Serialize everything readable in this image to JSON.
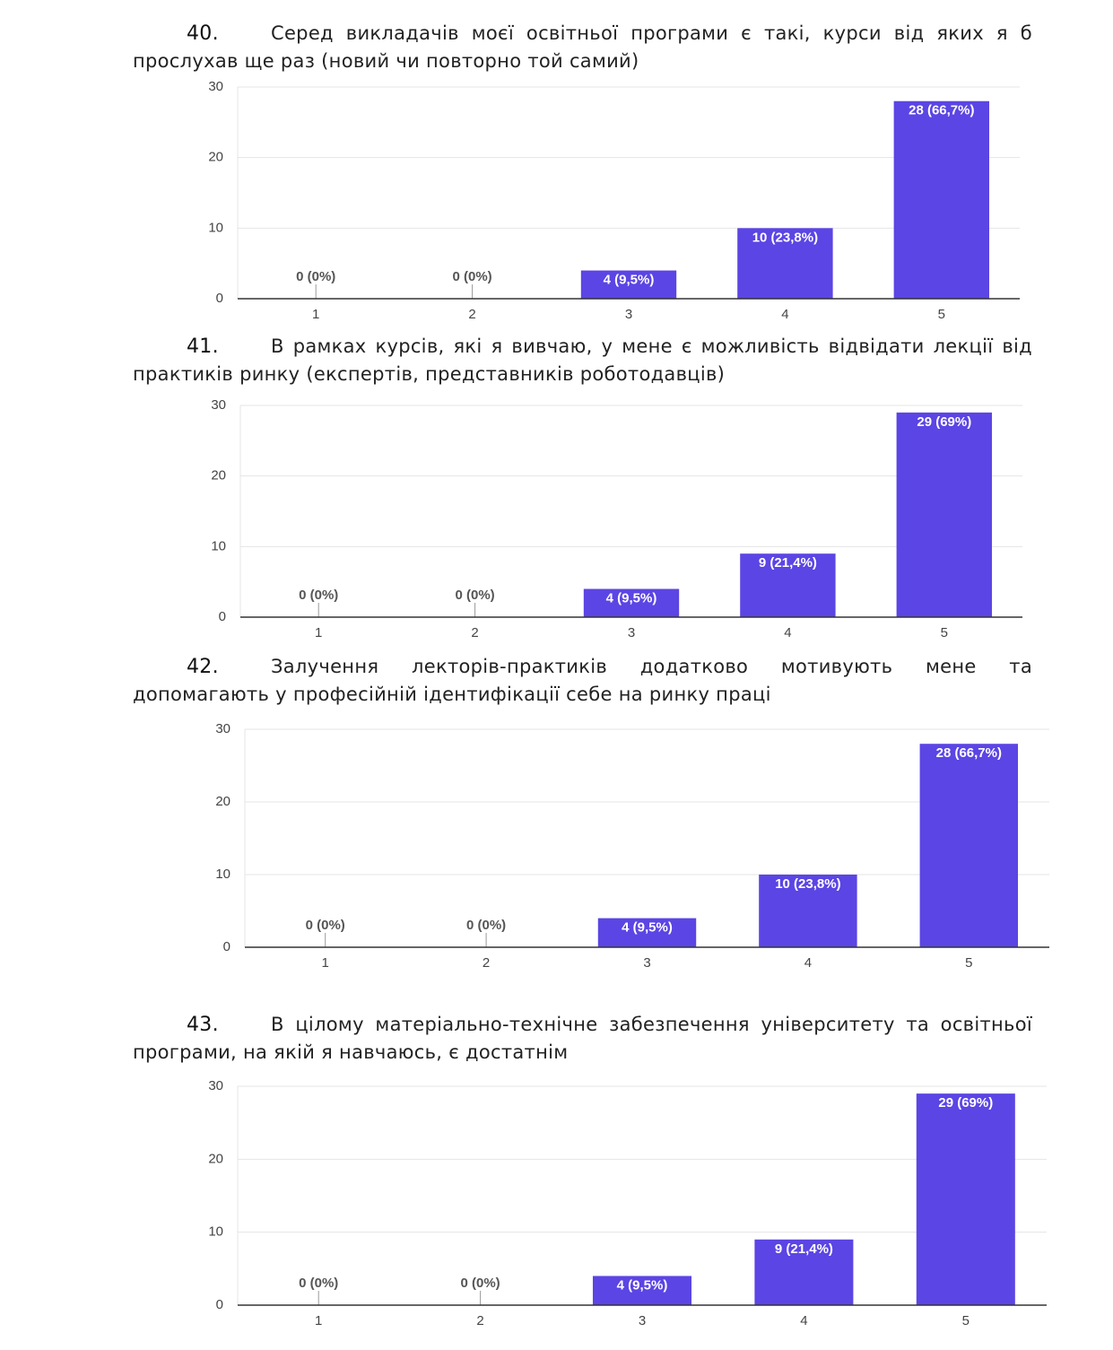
{
  "headings": [
    {
      "number": "40.",
      "text": "Серед викладачів моєї освітньої програми є такі, курси від яких я б прослухав ще раз (новий чи повторно той самий)"
    },
    {
      "number": "41.",
      "text": "В рамках курсів, які я вивчаю, у мене є можливість відвідати лекції від практиків ринку (експертів, представників роботодавців)"
    },
    {
      "number": "42.",
      "text": "Залучення лекторів-практиків додатково мотивують мене та допомагають у професійній ідентифікації себе на ринку праці"
    },
    {
      "number": "43.",
      "text": "В цілому матеріально-технічне забезпечення університету та освітньої програми, на якій я навчаюсь, є достатнім"
    }
  ],
  "chart_data": [
    {
      "type": "bar",
      "categories": [
        "1",
        "2",
        "3",
        "4",
        "5"
      ],
      "values": [
        0,
        0,
        4,
        10,
        28
      ],
      "value_labels": [
        "0 (0%)",
        "0 (0%)",
        "4 (9,5%)",
        "10 (23,8%)",
        "28 (66,7%)"
      ],
      "color": "#5b45e4",
      "ylim": [
        0,
        30
      ],
      "yticks": [
        0,
        10,
        20,
        30
      ],
      "grid": true
    },
    {
      "type": "bar",
      "categories": [
        "1",
        "2",
        "3",
        "4",
        "5"
      ],
      "values": [
        0,
        0,
        4,
        9,
        29
      ],
      "value_labels": [
        "0 (0%)",
        "0 (0%)",
        "4 (9,5%)",
        "9 (21,4%)",
        "29 (69%)"
      ],
      "color": "#5b45e4",
      "ylim": [
        0,
        30
      ],
      "yticks": [
        0,
        10,
        20,
        30
      ],
      "grid": true
    },
    {
      "type": "bar",
      "categories": [
        "1",
        "2",
        "3",
        "4",
        "5"
      ],
      "values": [
        0,
        0,
        4,
        10,
        28
      ],
      "value_labels": [
        "0 (0%)",
        "0 (0%)",
        "4 (9,5%)",
        "10 (23,8%)",
        "28 (66,7%)"
      ],
      "color": "#5b45e4",
      "ylim": [
        0,
        30
      ],
      "yticks": [
        0,
        10,
        20,
        30
      ],
      "grid": true
    },
    {
      "type": "bar",
      "categories": [
        "1",
        "2",
        "3",
        "4",
        "5"
      ],
      "values": [
        0,
        0,
        4,
        9,
        29
      ],
      "value_labels": [
        "0 (0%)",
        "0 (0%)",
        "4 (9,5%)",
        "9 (21,4%)",
        "29 (69%)"
      ],
      "color": "#5b45e4",
      "ylim": [
        0,
        30
      ],
      "yticks": [
        0,
        10,
        20,
        30
      ],
      "grid": true
    }
  ]
}
